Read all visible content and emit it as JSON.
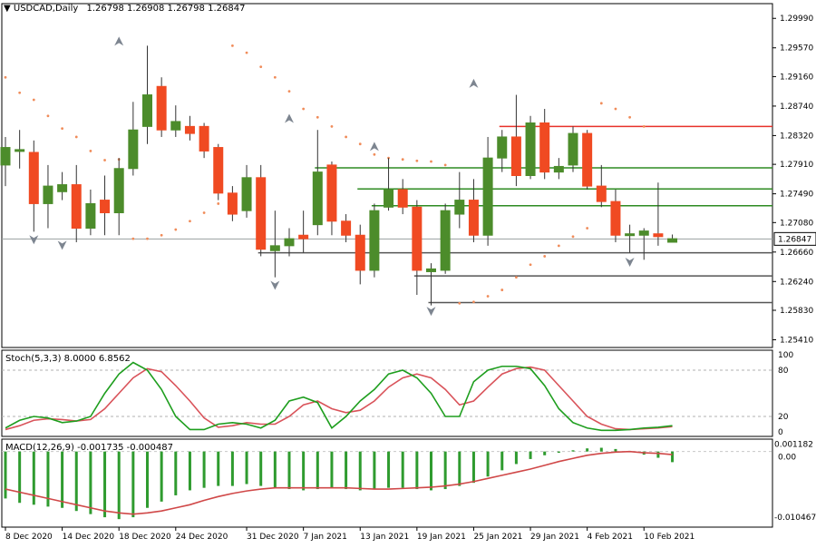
{
  "chart_data": [
    {
      "type": "candlestick",
      "title": "USDCAD,Daily",
      "ohlc_header": [
        "1.26798",
        "1.26908",
        "1.26798",
        "1.26847"
      ],
      "last_price_label": "1.26847",
      "ylim": [
        1.253,
        1.302
      ],
      "y_ticks": [
        "1.29990",
        "1.29570",
        "1.29160",
        "1.28740",
        "1.28320",
        "1.27910",
        "1.27490",
        "1.27080",
        "1.26660",
        "1.26240",
        "1.25830",
        "1.25410"
      ],
      "x_tick_labels": [
        "8 Dec 2020",
        "14 Dec 2020",
        "18 Dec 2020",
        "24 Dec 2020",
        "31 Dec 2020",
        "7 Jan 2021",
        "13 Jan 2021",
        "19 Jan 2021",
        "25 Jan 2021",
        "29 Jan 2021",
        "4 Feb 2021",
        "10 Feb 2021"
      ],
      "candles": [
        {
          "o": 1.279,
          "h": 1.283,
          "l": 1.276,
          "c": 1.2815
        },
        {
          "o": 1.281,
          "h": 1.284,
          "l": 1.2785,
          "c": 1.2812
        },
        {
          "o": 1.2808,
          "h": 1.2825,
          "l": 1.2695,
          "c": 1.2735
        },
        {
          "o": 1.2735,
          "h": 1.279,
          "l": 1.27,
          "c": 1.276
        },
        {
          "o": 1.2752,
          "h": 1.278,
          "l": 1.274,
          "c": 1.2762
        },
        {
          "o": 1.2762,
          "h": 1.279,
          "l": 1.268,
          "c": 1.27
        },
        {
          "o": 1.27,
          "h": 1.2755,
          "l": 1.269,
          "c": 1.2735
        },
        {
          "o": 1.274,
          "h": 1.2775,
          "l": 1.269,
          "c": 1.2722
        },
        {
          "o": 1.2722,
          "h": 1.28,
          "l": 1.269,
          "c": 1.2785
        },
        {
          "o": 1.2785,
          "h": 1.288,
          "l": 1.2775,
          "c": 1.284
        },
        {
          "o": 1.2845,
          "h": 1.296,
          "l": 1.282,
          "c": 1.289
        },
        {
          "o": 1.2902,
          "h": 1.2915,
          "l": 1.283,
          "c": 1.284
        },
        {
          "o": 1.284,
          "h": 1.2875,
          "l": 1.283,
          "c": 1.2852
        },
        {
          "o": 1.2845,
          "h": 1.286,
          "l": 1.2825,
          "c": 1.2835
        },
        {
          "o": 1.2845,
          "h": 1.285,
          "l": 1.28,
          "c": 1.281
        },
        {
          "o": 1.2815,
          "h": 1.282,
          "l": 1.274,
          "c": 1.275
        },
        {
          "o": 1.275,
          "h": 1.276,
          "l": 1.271,
          "c": 1.272
        },
        {
          "o": 1.2725,
          "h": 1.279,
          "l": 1.2715,
          "c": 1.2772
        },
        {
          "o": 1.2772,
          "h": 1.279,
          "l": 1.266,
          "c": 1.267
        },
        {
          "o": 1.2668,
          "h": 1.2725,
          "l": 1.263,
          "c": 1.2675
        },
        {
          "o": 1.2675,
          "h": 1.27,
          "l": 1.266,
          "c": 1.2685
        },
        {
          "o": 1.269,
          "h": 1.2725,
          "l": 1.2665,
          "c": 1.2685
        },
        {
          "o": 1.2705,
          "h": 1.284,
          "l": 1.269,
          "c": 1.278
        },
        {
          "o": 1.279,
          "h": 1.2795,
          "l": 1.269,
          "c": 1.271
        },
        {
          "o": 1.271,
          "h": 1.272,
          "l": 1.268,
          "c": 1.269
        },
        {
          "o": 1.269,
          "h": 1.2705,
          "l": 1.262,
          "c": 1.264
        },
        {
          "o": 1.264,
          "h": 1.2735,
          "l": 1.263,
          "c": 1.2725
        },
        {
          "o": 1.273,
          "h": 1.28,
          "l": 1.2725,
          "c": 1.2755
        },
        {
          "o": 1.2755,
          "h": 1.277,
          "l": 1.272,
          "c": 1.273
        },
        {
          "o": 1.273,
          "h": 1.274,
          "l": 1.2605,
          "c": 1.264
        },
        {
          "o": 1.2638,
          "h": 1.265,
          "l": 1.259,
          "c": 1.2642
        },
        {
          "o": 1.264,
          "h": 1.2735,
          "l": 1.2635,
          "c": 1.2725
        },
        {
          "o": 1.272,
          "h": 1.278,
          "l": 1.27,
          "c": 1.274
        },
        {
          "o": 1.274,
          "h": 1.277,
          "l": 1.268,
          "c": 1.269
        },
        {
          "o": 1.269,
          "h": 1.283,
          "l": 1.2675,
          "c": 1.28
        },
        {
          "o": 1.28,
          "h": 1.284,
          "l": 1.278,
          "c": 1.283
        },
        {
          "o": 1.283,
          "h": 1.289,
          "l": 1.276,
          "c": 1.2775
        },
        {
          "o": 1.2775,
          "h": 1.286,
          "l": 1.277,
          "c": 1.285
        },
        {
          "o": 1.285,
          "h": 1.287,
          "l": 1.277,
          "c": 1.278
        },
        {
          "o": 1.278,
          "h": 1.28,
          "l": 1.277,
          "c": 1.2788
        },
        {
          "o": 1.279,
          "h": 1.2845,
          "l": 1.278,
          "c": 1.2835
        },
        {
          "o": 1.2835,
          "h": 1.284,
          "l": 1.2755,
          "c": 1.276
        },
        {
          "o": 1.276,
          "h": 1.279,
          "l": 1.273,
          "c": 1.2738
        },
        {
          "o": 1.2738,
          "h": 1.2755,
          "l": 1.268,
          "c": 1.269
        },
        {
          "o": 1.269,
          "h": 1.2705,
          "l": 1.2665,
          "c": 1.2692
        },
        {
          "o": 1.269,
          "h": 1.27,
          "l": 1.2655,
          "c": 1.2696
        },
        {
          "o": 1.2692,
          "h": 1.2765,
          "l": 1.2675,
          "c": 1.2688
        },
        {
          "o": 1.268,
          "h": 1.2691,
          "l": 1.268,
          "c": 1.2685
        }
      ],
      "sar": [
        [
          0,
          1.2915
        ],
        [
          1,
          1.2893
        ],
        [
          2,
          1.2883
        ],
        [
          3,
          1.286
        ],
        [
          4,
          1.2842
        ],
        [
          5,
          1.283
        ],
        [
          6,
          1.281
        ],
        [
          7,
          1.2797
        ],
        [
          8,
          1.2798
        ],
        [
          9,
          1.2685
        ],
        [
          10,
          1.2685
        ],
        [
          11,
          1.269
        ],
        [
          12,
          1.2698
        ],
        [
          13,
          1.271
        ],
        [
          14,
          1.2722
        ],
        [
          15,
          1.2735
        ],
        [
          16,
          1.296
        ],
        [
          17,
          1.295
        ],
        [
          18,
          1.293
        ],
        [
          19,
          1.2915
        ],
        [
          20,
          1.2895
        ],
        [
          21,
          1.287
        ],
        [
          22,
          1.2858
        ],
        [
          23,
          1.2845
        ],
        [
          24,
          1.283
        ],
        [
          25,
          1.282
        ],
        [
          26,
          1.2805
        ],
        [
          27,
          1.28
        ],
        [
          28,
          1.2798
        ],
        [
          29,
          1.2796
        ],
        [
          30,
          1.2795
        ],
        [
          31,
          1.279
        ],
        [
          32,
          1.2593
        ],
        [
          33,
          1.2595
        ],
        [
          34,
          1.2603
        ],
        [
          35,
          1.2612
        ],
        [
          36,
          1.263
        ],
        [
          37,
          1.2648
        ],
        [
          38,
          1.266
        ],
        [
          39,
          1.2675
        ],
        [
          40,
          1.2688
        ],
        [
          41,
          1.27
        ],
        [
          42,
          1.2878
        ],
        [
          43,
          1.287
        ],
        [
          44,
          1.2858
        ],
        [
          45,
          1.2845
        ]
      ],
      "fractals_up": [
        [
          8,
          1.296
        ],
        [
          20,
          1.285
        ],
        [
          26,
          1.281
        ],
        [
          33,
          1.29
        ]
      ],
      "fractals_down": [
        [
          2,
          1.269
        ],
        [
          4,
          1.2682
        ],
        [
          19,
          1.2625
        ],
        [
          30,
          1.2588
        ],
        [
          44,
          1.2658
        ]
      ],
      "horizontal_levels": [
        {
          "price": 1.2845,
          "color": "#e8322a",
          "from": 35
        },
        {
          "price": 1.2786,
          "color": "#2e8b22",
          "from": 22
        },
        {
          "price": 1.2756,
          "color": "#2e8b22",
          "from": 25
        },
        {
          "price": 1.2732,
          "color": "#2e8b22",
          "from": 26
        },
        {
          "price": 1.2665,
          "color": "#555555",
          "from": 18
        },
        {
          "price": 1.2632,
          "color": "#555555",
          "from": 29
        },
        {
          "price": 1.2594,
          "color": "#555555",
          "from": 30
        }
      ],
      "colors": {
        "bull": "#4c8c2b",
        "bear": "#f04a22",
        "sar": "#f08c5a",
        "current_line": "#9aa0a0"
      }
    },
    {
      "type": "line",
      "title": "Stoch(5,3,3) 8.0000 6.8562",
      "ylim": [
        0,
        100
      ],
      "levels": [
        20,
        80
      ],
      "y_ticks": [
        "100",
        "80",
        "20",
        "0"
      ],
      "series": [
        {
          "name": "%K",
          "color": "#1e9e1e",
          "values": [
            5,
            15,
            20,
            18,
            12,
            14,
            20,
            50,
            75,
            90,
            80,
            55,
            20,
            3,
            3,
            10,
            12,
            10,
            5,
            15,
            40,
            45,
            38,
            5,
            20,
            40,
            55,
            75,
            80,
            70,
            50,
            20,
            20,
            65,
            80,
            85,
            85,
            82,
            60,
            30,
            12,
            5,
            2,
            2,
            3,
            5,
            6,
            8
          ]
        },
        {
          "name": "%D",
          "color": "#d9535a",
          "values": [
            3,
            8,
            15,
            17,
            16,
            14,
            16,
            30,
            50,
            70,
            82,
            78,
            60,
            40,
            18,
            6,
            8,
            12,
            10,
            10,
            20,
            35,
            40,
            30,
            25,
            28,
            40,
            58,
            70,
            75,
            70,
            55,
            35,
            40,
            58,
            75,
            82,
            84,
            80,
            60,
            40,
            20,
            10,
            4,
            3,
            4,
            5,
            6.8562
          ]
        }
      ]
    },
    {
      "type": "bar",
      "title": "MACD(12,26,9) -0.001735 -0.000487",
      "ylim": [
        -0.0115,
        0.0014
      ],
      "y_ticks": [
        "0.001182",
        "0.00",
        "-0.010467"
      ],
      "series": [
        {
          "name": "MACD",
          "color": "#2f9b2f",
          "values": [
            -0.0075,
            -0.0082,
            -0.0085,
            -0.0088,
            -0.009,
            -0.0095,
            -0.01,
            -0.0105,
            -0.0108,
            -0.0105,
            -0.009,
            -0.008,
            -0.007,
            -0.0062,
            -0.0058,
            -0.0055,
            -0.0055,
            -0.0052,
            -0.0055,
            -0.0058,
            -0.006,
            -0.0062,
            -0.006,
            -0.0058,
            -0.006,
            -0.0062,
            -0.006,
            -0.0058,
            -0.0058,
            -0.006,
            -0.0062,
            -0.006,
            -0.0055,
            -0.005,
            -0.004,
            -0.003,
            -0.002,
            -0.0012,
            -0.0006,
            -0.0002,
            0.0002,
            0.0005,
            0.0006,
            0.0004,
            0.0001,
            -0.0005,
            -0.001,
            -0.0017
          ]
        },
        {
          "name": "Signal",
          "color": "#d04848",
          "values": [
            -0.006,
            -0.0065,
            -0.007,
            -0.0075,
            -0.008,
            -0.0085,
            -0.009,
            -0.0095,
            -0.0098,
            -0.01,
            -0.0098,
            -0.0095,
            -0.009,
            -0.0085,
            -0.0078,
            -0.0072,
            -0.0067,
            -0.0063,
            -0.006,
            -0.0058,
            -0.0058,
            -0.0058,
            -0.0058,
            -0.0058,
            -0.0058,
            -0.0059,
            -0.006,
            -0.006,
            -0.0059,
            -0.0058,
            -0.0057,
            -0.0055,
            -0.0052,
            -0.0048,
            -0.0043,
            -0.0038,
            -0.0033,
            -0.0028,
            -0.0022,
            -0.0016,
            -0.0011,
            -0.0006,
            -0.0003,
            -0.0001,
            0.0,
            -0.0002,
            -0.0003,
            -0.0005
          ]
        }
      ]
    }
  ]
}
